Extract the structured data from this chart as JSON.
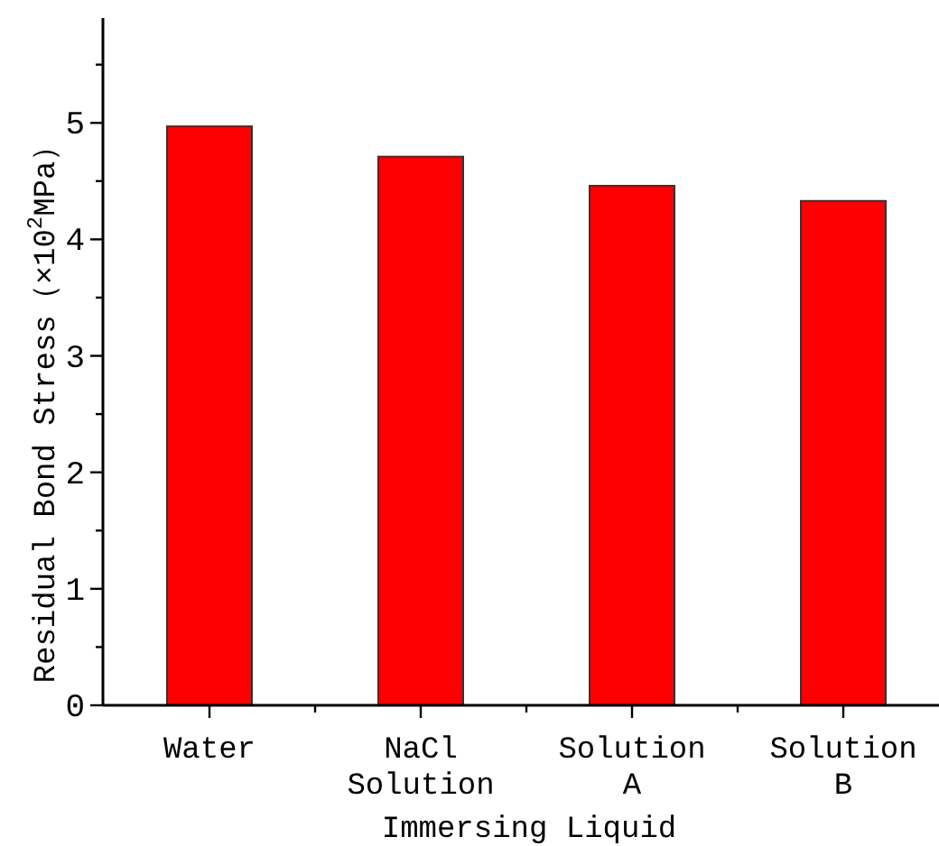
{
  "chart_data": {
    "type": "bar",
    "xlabel": "Immersing Liquid",
    "ylabel": "Residual Bond Stress（×10$^{2}$MPa）",
    "categories": [
      "Water",
      "NaCl Solution",
      "Solution A",
      "Solution B"
    ],
    "values": [
      4.97,
      4.71,
      4.46,
      4.33
    ],
    "color": "#ff0000",
    "ylim": [
      0,
      5.9
    ],
    "yticks": [
      0,
      {
        "value": 0.5,
        "label": null
      },
      1,
      {
        "value": 1.5,
        "label": null
      },
      2,
      {
        "value": 2.5,
        "label": null
      },
      3,
      {
        "value": 3.5,
        "label": null
      },
      4,
      {
        "value": 4.5,
        "label": null
      },
      5,
      {
        "value": 5.5,
        "label": null
      }
    ],
    "grid": false
  }
}
